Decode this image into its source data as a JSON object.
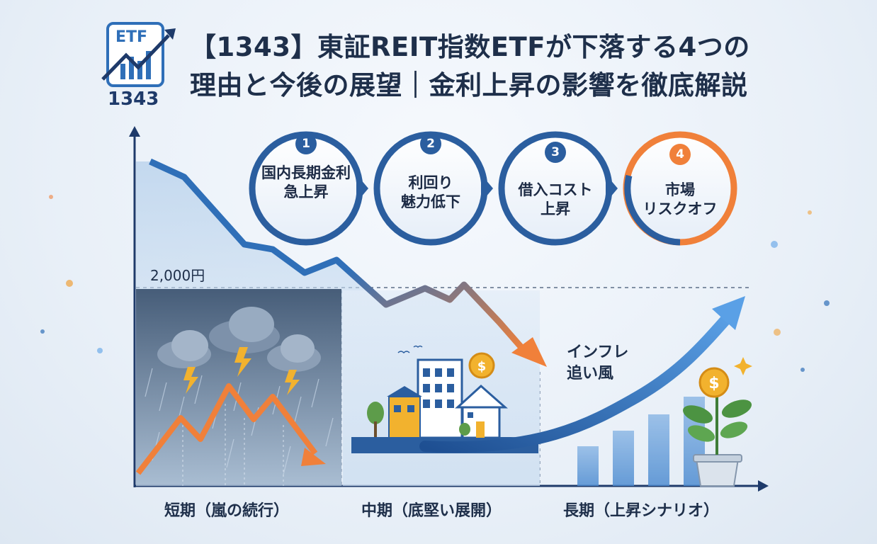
{
  "logo": {
    "etf_text": "ETF",
    "code": "1343"
  },
  "title": {
    "line1": "【1343】東証REIT指数ETFが下落する4つの",
    "line2": "理由と今後の展望｜金利上昇の影響を徹底解説"
  },
  "steps": [
    {
      "number": "1",
      "line1": "国内長期金利",
      "line2": "急上昇"
    },
    {
      "number": "2",
      "line1": "利回り",
      "line2": "魅力低下"
    },
    {
      "number": "3",
      "line1": "借入コスト",
      "line2": "上昇"
    },
    {
      "number": "4",
      "line1": "市場",
      "line2": "リスクオフ"
    }
  ],
  "price_level_label": "2,000円",
  "annotation": {
    "line1": "インフレ",
    "line2": "追い風"
  },
  "phases": [
    {
      "label": "短期（嵐の続行）"
    },
    {
      "label": "中期（底堅い展開）"
    },
    {
      "label": "長期（上昇シナリオ）"
    }
  ],
  "colors": {
    "navy": "#1e3a6a",
    "blue": "#2f6fb8",
    "orange": "#f0803a",
    "gold": "#f2b22e"
  },
  "icons": [
    "etf-chart-icon",
    "storm-cloud-icon",
    "lightning-icon",
    "building-icon",
    "house-icon",
    "coin-icon",
    "plant-icon",
    "sparkle-icon"
  ]
}
